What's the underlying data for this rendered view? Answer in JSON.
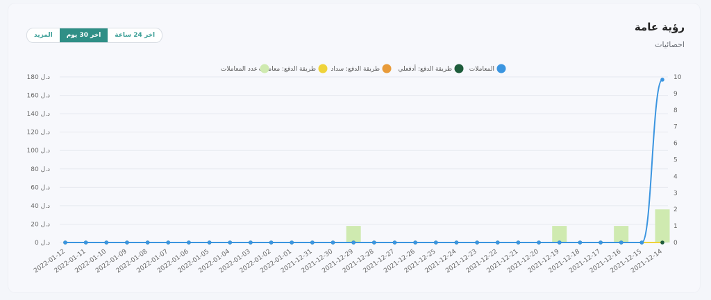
{
  "header": {
    "title": "رؤية عامة",
    "subtitle": "احصائيات"
  },
  "range_selector": {
    "options": [
      "المزيد",
      "اخر 30 يوم",
      "اخر 24 ساعة"
    ],
    "active": "اخر 30 يوم"
  },
  "chart_data": {
    "type": "line",
    "categories": [
      "2022-01-12",
      "2022-01-11",
      "2022-01-10",
      "2022-01-09",
      "2022-01-08",
      "2022-01-07",
      "2022-01-06",
      "2022-01-05",
      "2022-01-04",
      "2022-01-03",
      "2022-01-02",
      "2022-01-01",
      "2021-12-31",
      "2021-12-30",
      "2021-12-29",
      "2021-12-28",
      "2021-12-27",
      "2021-12-26",
      "2021-12-25",
      "2021-12-24",
      "2021-12-23",
      "2021-12-22",
      "2021-12-21",
      "2021-12-20",
      "2021-12-19",
      "2021-12-18",
      "2021-12-17",
      "2021-12-16",
      "2021-12-15",
      "2021-12-14"
    ],
    "left_axis": {
      "ticks": [
        0,
        20,
        40,
        60,
        80,
        100,
        120,
        140,
        160,
        180
      ],
      "tick_labels": [
        "0 د.ل",
        "20 د.ل",
        "40 د.ل",
        "60 د.ل",
        "80 د.ل",
        "100 د.ل",
        "120 د.ل",
        "140 د.ل",
        "160 د.ل",
        "180 د.ل"
      ],
      "range": [
        0,
        180
      ]
    },
    "right_axis": {
      "ticks": [
        0,
        1,
        2,
        3,
        4,
        5,
        6,
        7,
        8,
        9,
        10
      ],
      "range": [
        0,
        10
      ]
    },
    "grid": true,
    "legend_position": "top-center",
    "series": [
      {
        "name": "المعاملات",
        "type": "line",
        "axis": "left",
        "color": "#3b95e0",
        "values": [
          0,
          0,
          0,
          0,
          0,
          0,
          0,
          0,
          0,
          0,
          0,
          0,
          0,
          0,
          0,
          0,
          0,
          0,
          0,
          0,
          0,
          0,
          0,
          0,
          0,
          0,
          0,
          0,
          0,
          177
        ]
      },
      {
        "name": "طريقة الدفع: أدفعلي",
        "type": "line",
        "axis": "left",
        "color": "#1e5c3b",
        "values": [
          0,
          0,
          0,
          0,
          0,
          0,
          0,
          0,
          0,
          0,
          0,
          0,
          0,
          0,
          0,
          0,
          0,
          0,
          0,
          0,
          0,
          0,
          0,
          0,
          0,
          0,
          0,
          0,
          0,
          0
        ]
      },
      {
        "name": "طريقة الدفع: سداد",
        "type": "line",
        "axis": "left",
        "color": "#e89b3a",
        "values": [
          0,
          0,
          0,
          0,
          0,
          0,
          0,
          0,
          0,
          0,
          0,
          0,
          0,
          0,
          0,
          0,
          0,
          0,
          0,
          0,
          0,
          0,
          0,
          0,
          0,
          0,
          0,
          0,
          0,
          0
        ]
      },
      {
        "name": "طريقة الدفع: معاملات",
        "type": "line",
        "axis": "left",
        "color": "#efd33a",
        "values": [
          0,
          0,
          0,
          0,
          0,
          0,
          0,
          0,
          0,
          0,
          0,
          0,
          0,
          0,
          0,
          0,
          0,
          0,
          0,
          0,
          0,
          0,
          0,
          0,
          0,
          0,
          0,
          0,
          0,
          0
        ]
      },
      {
        "name": "عدد المعاملات",
        "type": "bar",
        "axis": "right",
        "color": "#cfeab0",
        "values": [
          0,
          0,
          0,
          0,
          0,
          0,
          0,
          0,
          0,
          0,
          0,
          0,
          0,
          0,
          1,
          0,
          0,
          0,
          0,
          0,
          0,
          0,
          0,
          0,
          1,
          0,
          0,
          1,
          0,
          2
        ]
      }
    ]
  }
}
